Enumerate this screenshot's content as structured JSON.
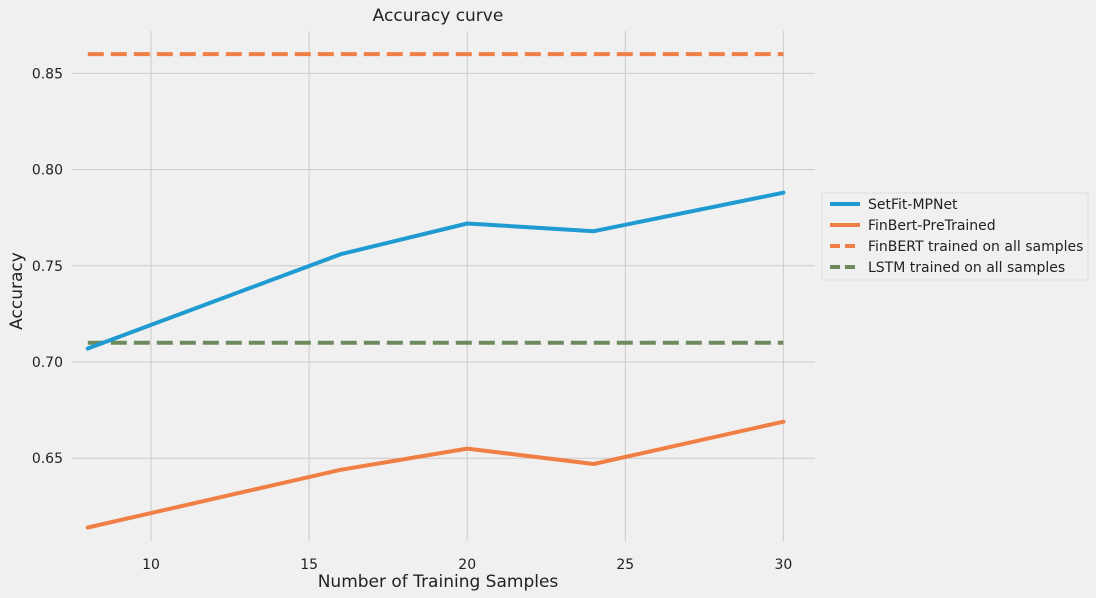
{
  "chart_data": {
    "type": "line",
    "title": "Accuracy curve",
    "xlabel": "Number of Training Samples",
    "ylabel": "Accuracy",
    "xlim": [
      7.5,
      31
    ],
    "ylim": [
      0.607,
      0.872
    ],
    "xticks": [
      10,
      15,
      20,
      25,
      30
    ],
    "yticks": [
      0.65,
      0.7,
      0.75,
      0.8,
      0.85
    ],
    "ytick_labels": [
      "0.65",
      "0.70",
      "0.75",
      "0.80",
      "0.85"
    ],
    "grid": true,
    "legend_position": "center-right, outside",
    "series": [
      {
        "name": "SetFit-MPNet",
        "color": "#1f9bd1",
        "style": "solid",
        "x": [
          8,
          16,
          20,
          24,
          30
        ],
        "y": [
          0.707,
          0.756,
          0.772,
          0.768,
          0.788
        ]
      },
      {
        "name": "FinBert-PreTrained",
        "color": "#ef7f45",
        "style": "solid",
        "x": [
          8,
          16,
          20,
          24,
          30
        ],
        "y": [
          0.614,
          0.644,
          0.655,
          0.647,
          0.669
        ]
      },
      {
        "name": "FinBERT trained on all samples",
        "color": "#ef7f45",
        "style": "dashed",
        "x": [
          8,
          30
        ],
        "y": [
          0.86,
          0.86
        ]
      },
      {
        "name": "LSTM trained on all samples",
        "color": "#6d8a5e",
        "style": "dashed",
        "x": [
          8,
          30
        ],
        "y": [
          0.71,
          0.71
        ]
      }
    ]
  }
}
